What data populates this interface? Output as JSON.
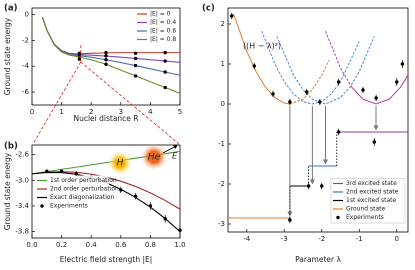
{
  "chart_data": [
    {
      "type": "line",
      "panel": "(a)",
      "xlabel": "Nuclei distance R",
      "ylabel": "Ground state energy",
      "xlim": [
        0,
        5
      ],
      "ylim": [
        -7,
        0.5
      ],
      "xticks": [
        0,
        1,
        2,
        3,
        4,
        5
      ],
      "yticks": [
        -6,
        -4,
        -2,
        0
      ],
      "legend": "upper right",
      "x": [
        0.35,
        0.5,
        0.75,
        1,
        1.25,
        1.5,
        2,
        2.5,
        3,
        3.5,
        4,
        4.5,
        5
      ],
      "series": [
        {
          "name": "|E| = 0",
          "color": "#c0392b",
          "values": [
            -0.2,
            -1.2,
            -2.3,
            -2.8,
            -3.0,
            -3.05,
            -3.0,
            -2.97,
            -2.95,
            -2.95,
            -2.95,
            -2.95,
            -2.95
          ],
          "experiments": {
            "x": [
              1.6,
              2.5,
              3.5,
              4.5
            ],
            "values": [
              -3.0,
              -2.95,
              -3.0,
              -2.95
            ]
          }
        },
        {
          "name": "|E| = 0.4",
          "color": "#8e44ad",
          "values": [
            -0.2,
            -1.2,
            -2.3,
            -2.82,
            -3.03,
            -3.1,
            -3.15,
            -3.22,
            -3.3,
            -3.4,
            -3.5,
            -3.6,
            -3.7
          ],
          "experiments": {
            "x": [
              1.6,
              2.5,
              3.5,
              4.5
            ],
            "values": [
              -3.1,
              -3.2,
              -3.4,
              -3.6
            ]
          }
        },
        {
          "name": "|E| = 0.6",
          "color": "#4a6fa5",
          "values": [
            -0.2,
            -1.2,
            -2.32,
            -2.85,
            -3.07,
            -3.17,
            -3.3,
            -3.5,
            -3.72,
            -3.95,
            -4.2,
            -4.45,
            -4.7
          ],
          "experiments": {
            "x": [
              1.6,
              2.5,
              3.5,
              4.5
            ],
            "values": [
              -3.25,
              -3.5,
              -3.95,
              -4.45
            ]
          }
        },
        {
          "name": "|E| = 0.8",
          "color": "#6b8e23",
          "values": [
            -0.2,
            -1.22,
            -2.35,
            -2.9,
            -3.13,
            -3.25,
            -3.5,
            -3.85,
            -4.3,
            -4.75,
            -5.2,
            -5.65,
            -6.1
          ],
          "experiments": {
            "x": [
              1.6,
              2.5,
              3.5,
              4.5
            ],
            "values": [
              -3.45,
              -3.85,
              -4.75,
              -5.65
            ]
          }
        }
      ]
    },
    {
      "type": "line",
      "panel": "(b)",
      "xlabel": "Electric field strength |E|",
      "ylabel": "Ground state energy",
      "xlim": [
        0,
        1
      ],
      "ylim": [
        -3.9,
        -2.45
      ],
      "xticks": [
        {
          "value": 0,
          "label": "0.0"
        },
        0.2,
        0.4,
        0.6,
        0.8,
        {
          "value": 1,
          "label": "1.0"
        }
      ],
      "yticks": [
        -2.6,
        {
          "value": -3,
          "label": "-3.0"
        },
        -3.4,
        -3.8
      ],
      "legend": "center left",
      "annotations": [
        "H",
        "He",
        "E"
      ],
      "x": [
        0,
        0.1,
        0.2,
        0.3,
        0.4,
        0.5,
        0.6,
        0.7,
        0.8,
        0.9,
        1
      ],
      "series": [
        {
          "name": "1st order perturbation",
          "color": "#4c9a2a",
          "values": [
            -2.9,
            -2.865,
            -2.83,
            -2.795,
            -2.76,
            -2.725,
            -2.69,
            -2.655,
            -2.62,
            -2.585,
            -2.55
          ]
        },
        {
          "name": "2nd order perturbation",
          "color": "#a0282c",
          "values": [
            -2.9,
            -2.874,
            -2.866,
            -2.876,
            -2.904,
            -2.95,
            -3.014,
            -3.096,
            -3.196,
            -3.314,
            -3.45
          ]
        },
        {
          "name": "Exact diagonalization",
          "color": "#000000",
          "values": [
            -2.9,
            -2.8775,
            -2.88,
            -2.9075,
            -2.96,
            -3.0375,
            -3.14,
            -3.2675,
            -3.42,
            -3.5975,
            -3.8
          ]
        }
      ],
      "experiments": {
        "name": "Experiments",
        "x": [
          0.1,
          0.2,
          0.3,
          0.4,
          0.5,
          0.6,
          0.7,
          0.8,
          0.9,
          1
        ],
        "values": [
          -2.86,
          -2.86,
          -2.9,
          -2.95,
          -3.02,
          -3.15,
          -3.25,
          -3.4,
          -3.6,
          -3.78
        ],
        "errors": [
          0.03,
          0.03,
          0.04,
          0.04,
          0.05,
          0.05,
          0.05,
          0.06,
          0.06,
          0.06
        ]
      }
    },
    {
      "type": "line",
      "panel": "(c)",
      "xlabel": "Parameter λ",
      "annotation": "⟨(H − λ)²⟩",
      "xlim": [
        -4.5,
        0.3
      ],
      "ylim": [
        -3.2,
        2.4
      ],
      "xticks": [
        -4,
        -3,
        -2,
        -1,
        0
      ],
      "yticks": [
        -3,
        -2,
        -1,
        0,
        1,
        2
      ],
      "legend": "lower right",
      "curves": [
        {
          "color": "#e07b2a",
          "dashed": false,
          "x": [
            -4.35,
            -4,
            -3.75,
            -3.5,
            -3.25,
            -3,
            -2.85
          ],
          "values": [
            2.25,
            1.32,
            0.81,
            0.42,
            0.16,
            0.02,
            0
          ]
        },
        {
          "color": "#e07b2a",
          "dashed": true,
          "x": [
            -2.85,
            -2.5,
            -2.25,
            -2,
            -1.8
          ],
          "values": [
            0,
            0.12,
            0.36,
            0.72,
            1.1
          ]
        },
        {
          "color": "#4f86d9",
          "dashed": true,
          "x": [
            -3.6,
            -3.25,
            -3,
            -2.75,
            -2.5,
            -2.25,
            -2,
            -1.75,
            -1.5,
            -1
          ],
          "values": [
            1.82,
            1,
            0.56,
            0.25,
            0.06,
            0,
            0.06,
            0.25,
            0.56,
            1.56
          ]
        },
        {
          "color": "#4f86d9",
          "dashed": true,
          "x": [
            -3.2,
            -2.75,
            -2.5,
            -2.25,
            -1.9,
            -1.5,
            -1.25,
            -1,
            -0.6
          ],
          "values": [
            1.69,
            0.72,
            0.36,
            0.12,
            0,
            0.16,
            0.42,
            0.81,
            1.69
          ]
        },
        {
          "color": "#b03ab0",
          "dashed": true,
          "x": [
            -1.9,
            -1.5,
            -1.2
          ],
          "values": [
            1.82,
            0.9,
            0.42
          ]
        },
        {
          "color": "#b03ab0",
          "dashed": false,
          "x": [
            -1.2,
            -0.9,
            -0.55,
            -0.2,
            0.1,
            0.3
          ],
          "values": [
            0.42,
            0.12,
            0,
            0.12,
            0.42,
            0.72
          ]
        }
      ],
      "series": [
        {
          "name": "3rd excited state",
          "color": "#8e3fa3",
          "x": [
            -1.6,
            0.3
          ],
          "values": [
            -0.7,
            -0.7
          ]
        },
        {
          "name": "2nd excited state",
          "color": "#3d6fc4",
          "x": [
            -2.35,
            -1.6
          ],
          "values": [
            -1.55,
            -1.55
          ]
        },
        {
          "name": "1st excited state",
          "color": "#000000",
          "x": [
            -2.85,
            -2.35
          ],
          "values": [
            -2.05,
            -2.05
          ]
        },
        {
          "name": "Ground state",
          "color": "#e07b2a",
          "x": [
            -4.5,
            -2.85
          ],
          "values": [
            -2.85,
            -2.85
          ]
        }
      ],
      "experiments": {
        "name": "Experiments",
        "x": [
          -4.4,
          -3.8,
          -3.3,
          -2.85,
          -2.4,
          -2.05,
          -1.55,
          -0.9,
          -0.55,
          0,
          0.15,
          -2.85,
          -2.35,
          -2,
          -1.55,
          -0.6
        ],
        "values": [
          2.2,
          0.95,
          0.25,
          0.05,
          0.3,
          0.05,
          0.55,
          0.35,
          0.15,
          0.55,
          1,
          -2.9,
          -2.05,
          -2.05,
          -0.7,
          -0.95
        ],
        "errors": [
          0.08,
          0.08,
          0.08,
          0.08,
          0.08,
          0.08,
          0.08,
          0.08,
          0.08,
          0.1,
          0.1,
          0.08,
          0.08,
          0.08,
          0.08,
          0.1
        ]
      }
    }
  ]
}
